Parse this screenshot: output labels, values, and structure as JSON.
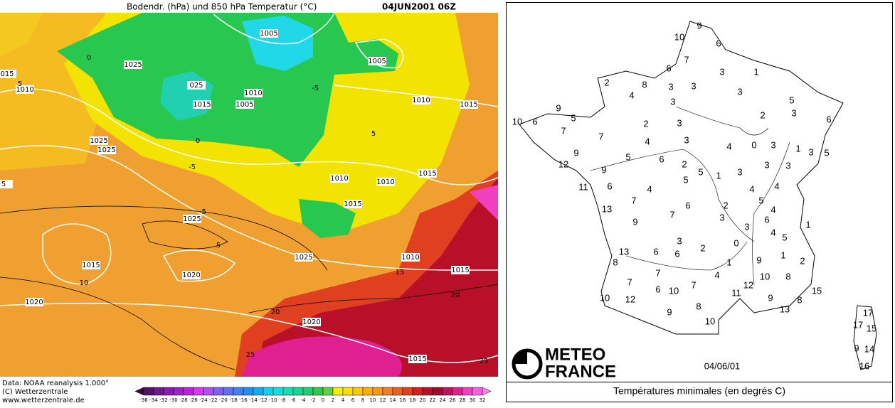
{
  "weather_map": {
    "title": "Bodendr. (hPa) und 850 hPa Temperatur (°C)",
    "date": "04JUN2001 06Z",
    "credits": [
      "Data: NOAA reanalysis 1.000°",
      "(C) Wetterzentrale",
      "www.wetterzentrale.de"
    ],
    "isobar_labels": [
      "1005",
      "1005",
      "1025",
      "1010",
      "015",
      "025",
      "1010",
      "1015",
      "1005",
      "1010",
      "1015",
      "1025",
      "1025",
      "1015",
      "1010",
      "1010",
      "1015",
      "1025",
      "1015",
      "1020",
      "1025",
      "1010",
      "1015",
      "1020",
      "1020",
      "1015",
      "5"
    ],
    "temperature_labels": [
      "-5",
      "-5",
      "5",
      "10",
      "0",
      "5",
      "15",
      "20",
      "20",
      "25",
      "25",
      "0",
      "5",
      "-5"
    ],
    "colorbar": {
      "ticks": [
        -36,
        -34,
        -32,
        -30,
        -28,
        -26,
        -24,
        -22,
        -20,
        -18,
        -16,
        -14,
        -12,
        -10,
        -8,
        -6,
        -4,
        -2,
        0,
        2,
        4,
        6,
        8,
        10,
        12,
        14,
        16,
        18,
        20,
        22,
        24,
        26,
        28,
        30,
        32
      ],
      "colors": [
        "#3a0a3a",
        "#55106a",
        "#6a1a8a",
        "#8a1ab0",
        "#a020c8",
        "#c020e0",
        "#d838f0",
        "#b050f0",
        "#8060f0",
        "#6070f0",
        "#4080f0",
        "#2090f0",
        "#10b0f0",
        "#10d0f0",
        "#10e0e0",
        "#10e0b0",
        "#10d890",
        "#20d070",
        "#30c850",
        "#60d040",
        "#f0f000",
        "#f8e000",
        "#f8c800",
        "#f8b000",
        "#f89818",
        "#f08020",
        "#e86020",
        "#e04020",
        "#d02020",
        "#b81028",
        "#a00830",
        "#c01060",
        "#e02090",
        "#f040c0",
        "#f860e0",
        "#f880f0"
      ]
    }
  },
  "france_map": {
    "logo": [
      "METEO",
      "FRANCE"
    ],
    "date": "04/06/01",
    "caption": "Températures minimales (en degrés C)",
    "stations": [
      9,
      10,
      6,
      7,
      6,
      3,
      1,
      2,
      8,
      4,
      3,
      3,
      3,
      3,
      5,
      9,
      5,
      3,
      2,
      10,
      6,
      2,
      3,
      6,
      7,
      7,
      4,
      3,
      4,
      0,
      3,
      1,
      3,
      5,
      9,
      5,
      6,
      2,
      12,
      9,
      5,
      1,
      3,
      3,
      3,
      5,
      4,
      6,
      11,
      4,
      4,
      7,
      6,
      2,
      5,
      4,
      13,
      7,
      3,
      6,
      3,
      9,
      1,
      4,
      5,
      3,
      0,
      2,
      6,
      6,
      13,
      1,
      9,
      1,
      2,
      8,
      7,
      4,
      10,
      8,
      12,
      7,
      6,
      10,
      7,
      15,
      11,
      10,
      12,
      9,
      8,
      8,
      13,
      9,
      10,
      17,
      17,
      15,
      9,
      14,
      16
    ]
  }
}
